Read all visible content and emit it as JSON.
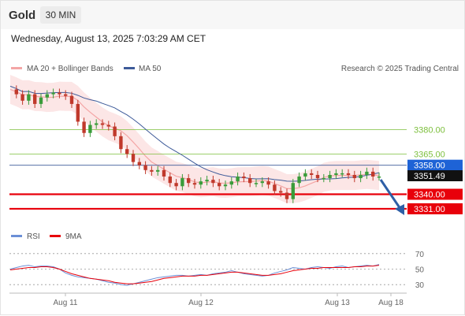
{
  "header": {
    "instrument": "Gold",
    "timeframe": "30 MIN"
  },
  "datetime": "Wednesday, August 13, 2025 7:03:29 AM CET",
  "legend": {
    "ma20_bb": "MA 20 + Bollinger Bands",
    "ma50": "MA 50",
    "rsi": "RSI",
    "rsi_ma": "9MA"
  },
  "credit": "Research © 2025 Trading Central",
  "colors": {
    "candle_up": "#3a9c3a",
    "candle_down": "#c0392b",
    "ma20_band": "#f4a6a6",
    "ma50": "#3d5a99",
    "resistance": "#7cbf3c",
    "pivot": "#3d5a99",
    "support": "#e8000b",
    "rsi": "#6b8fd6",
    "rsi_ma": "#e8000b",
    "arrow": "#2e5fa6"
  },
  "levels": [
    {
      "label": "3380.00",
      "price": 3380,
      "type": "resistance"
    },
    {
      "label": "3365.00",
      "price": 3365,
      "type": "resistance"
    },
    {
      "label": "3358.00",
      "price": 3358,
      "type": "pivot"
    },
    {
      "label": "3351.49",
      "price": 3351.49,
      "type": "last"
    },
    {
      "label": "3340.00",
      "price": 3340,
      "type": "support"
    },
    {
      "label": "3331.00",
      "price": 3331,
      "type": "support"
    }
  ],
  "chart_data": {
    "type": "line",
    "x_ticks": [
      "Aug 11",
      "Aug 12",
      "Aug 13",
      "Aug 18"
    ],
    "price_ylim": [
      3325,
      3415
    ],
    "price_series": [
      3405,
      3402,
      3398,
      3402,
      3396,
      3400,
      3402,
      3403,
      3402,
      3401,
      3396,
      3385,
      3378,
      3383,
      3384,
      3383,
      3382,
      3376,
      3368,
      3365,
      3360,
      3358,
      3355,
      3354,
      3355,
      3351,
      3347,
      3345,
      3350,
      3347,
      3346,
      3348,
      3349,
      3347,
      3345,
      3346,
      3348,
      3351,
      3350,
      3347,
      3347,
      3348,
      3346,
      3342,
      3341,
      3337,
      3347,
      3351,
      3353,
      3352,
      3350,
      3350,
      3352,
      3353,
      3353,
      3352,
      3350,
      3352,
      3354,
      3351,
      3351
    ],
    "rsi_ylim": [
      20,
      80
    ],
    "rsi_ticks": [
      70,
      50,
      30
    ],
    "rsi_series": [
      50,
      52,
      54,
      55,
      53,
      54,
      54,
      53,
      50,
      45,
      42,
      40,
      39,
      38,
      37,
      35,
      33,
      32,
      30,
      29,
      31,
      33,
      35,
      37,
      39,
      40,
      41,
      42,
      42,
      41,
      42,
      43,
      42,
      44,
      45,
      46,
      48,
      46,
      44,
      43,
      42,
      41,
      42,
      45,
      47,
      49,
      52,
      51,
      50,
      52,
      53,
      52,
      51,
      53,
      54,
      52,
      53,
      54,
      55,
      54,
      56
    ],
    "rsi_ma_series": [
      49,
      50,
      51,
      52,
      52,
      53,
      53,
      52,
      50,
      47,
      44,
      42,
      40,
      38,
      37,
      36,
      35,
      33,
      32,
      31,
      31,
      32,
      33,
      34,
      36,
      38,
      39,
      40,
      41,
      41,
      41,
      42,
      42,
      43,
      44,
      45,
      46,
      46,
      45,
      44,
      43,
      42,
      42,
      43,
      44,
      46,
      48,
      49,
      50,
      51,
      51,
      52,
      52,
      52,
      52,
      52,
      53,
      53,
      54,
      54,
      55
    ]
  }
}
